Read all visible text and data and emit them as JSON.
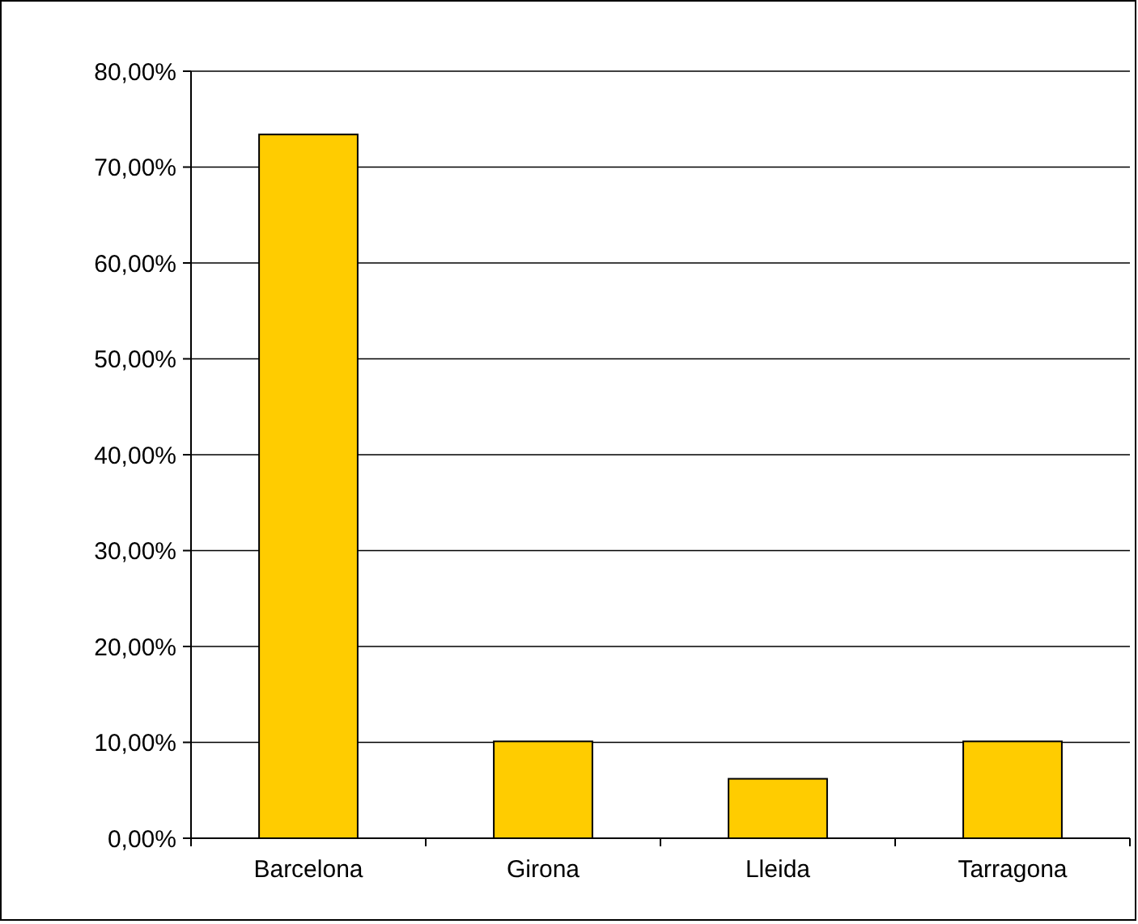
{
  "chart_data": {
    "type": "bar",
    "categories": [
      "Barcelona",
      "Girona",
      "Lleida",
      "Tarragona"
    ],
    "values": [
      73.4,
      10.1,
      6.2,
      10.1
    ],
    "color": "#ffcc00",
    "ylim": [
      0,
      80
    ],
    "yticks": [
      {
        "value": 0,
        "label": "0,00%"
      },
      {
        "value": 10,
        "label": "10,00%"
      },
      {
        "value": 20,
        "label": "20,00%"
      },
      {
        "value": 30,
        "label": "30,00%"
      },
      {
        "value": 40,
        "label": "40,00%"
      },
      {
        "value": 50,
        "label": "50,00%"
      },
      {
        "value": 60,
        "label": "60,00%"
      },
      {
        "value": 70,
        "label": "70,00%"
      },
      {
        "value": 80,
        "label": "80,00%"
      }
    ],
    "grid": "y"
  }
}
